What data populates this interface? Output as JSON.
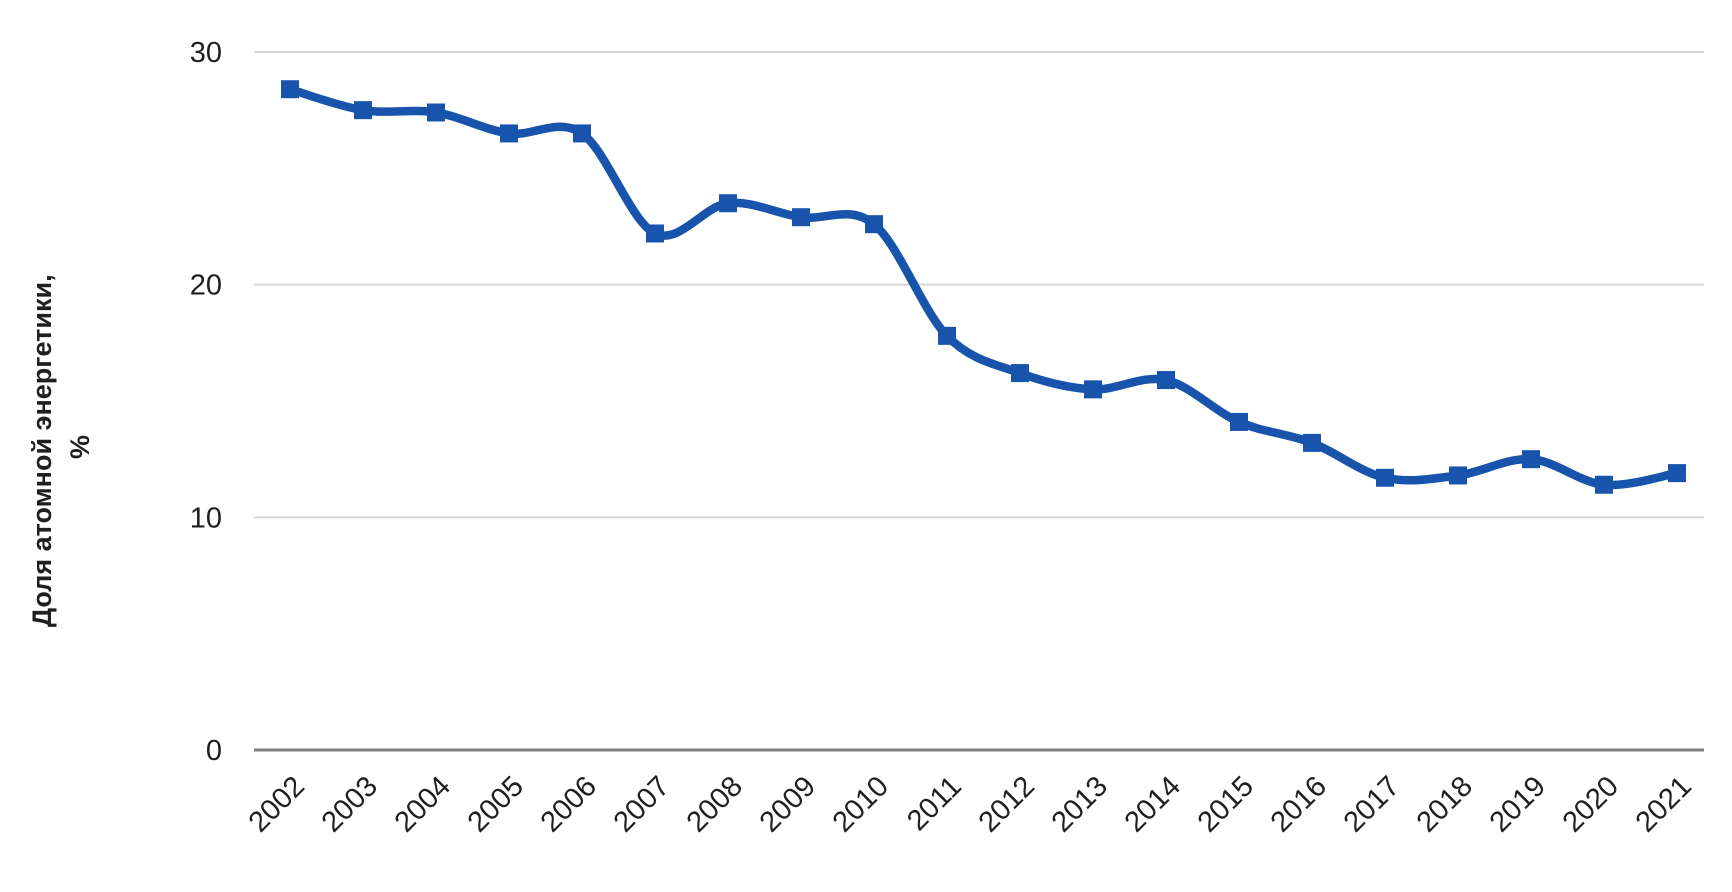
{
  "chart_data": {
    "type": "line",
    "title": "",
    "ylabel_line1": "Доля атомной энергетики,",
    "ylabel_line2": "%",
    "categories": [
      2002,
      2003,
      2004,
      2005,
      2006,
      2007,
      2008,
      2009,
      2010,
      2011,
      2012,
      2013,
      2014,
      2015,
      2016,
      2017,
      2018,
      2019,
      2020,
      2021
    ],
    "values": [
      28.4,
      27.5,
      27.4,
      26.5,
      26.5,
      22.2,
      23.5,
      22.9,
      22.6,
      17.8,
      16.2,
      15.5,
      15.9,
      14.1,
      13.2,
      11.7,
      11.8,
      12.5,
      11.4,
      11.9
    ],
    "ylim": [
      0,
      30
    ],
    "yticks": [
      0,
      10,
      20,
      30
    ],
    "grid": "horizontal",
    "legend": "none",
    "marker": "square",
    "smooth": true,
    "colors": {
      "line": "#1853ac",
      "marker": "#1853ac",
      "gridline": "#d6d6d6",
      "axis_line": "#7f7f7f",
      "text": "#1f1f1f",
      "background": "#ffffff"
    }
  }
}
